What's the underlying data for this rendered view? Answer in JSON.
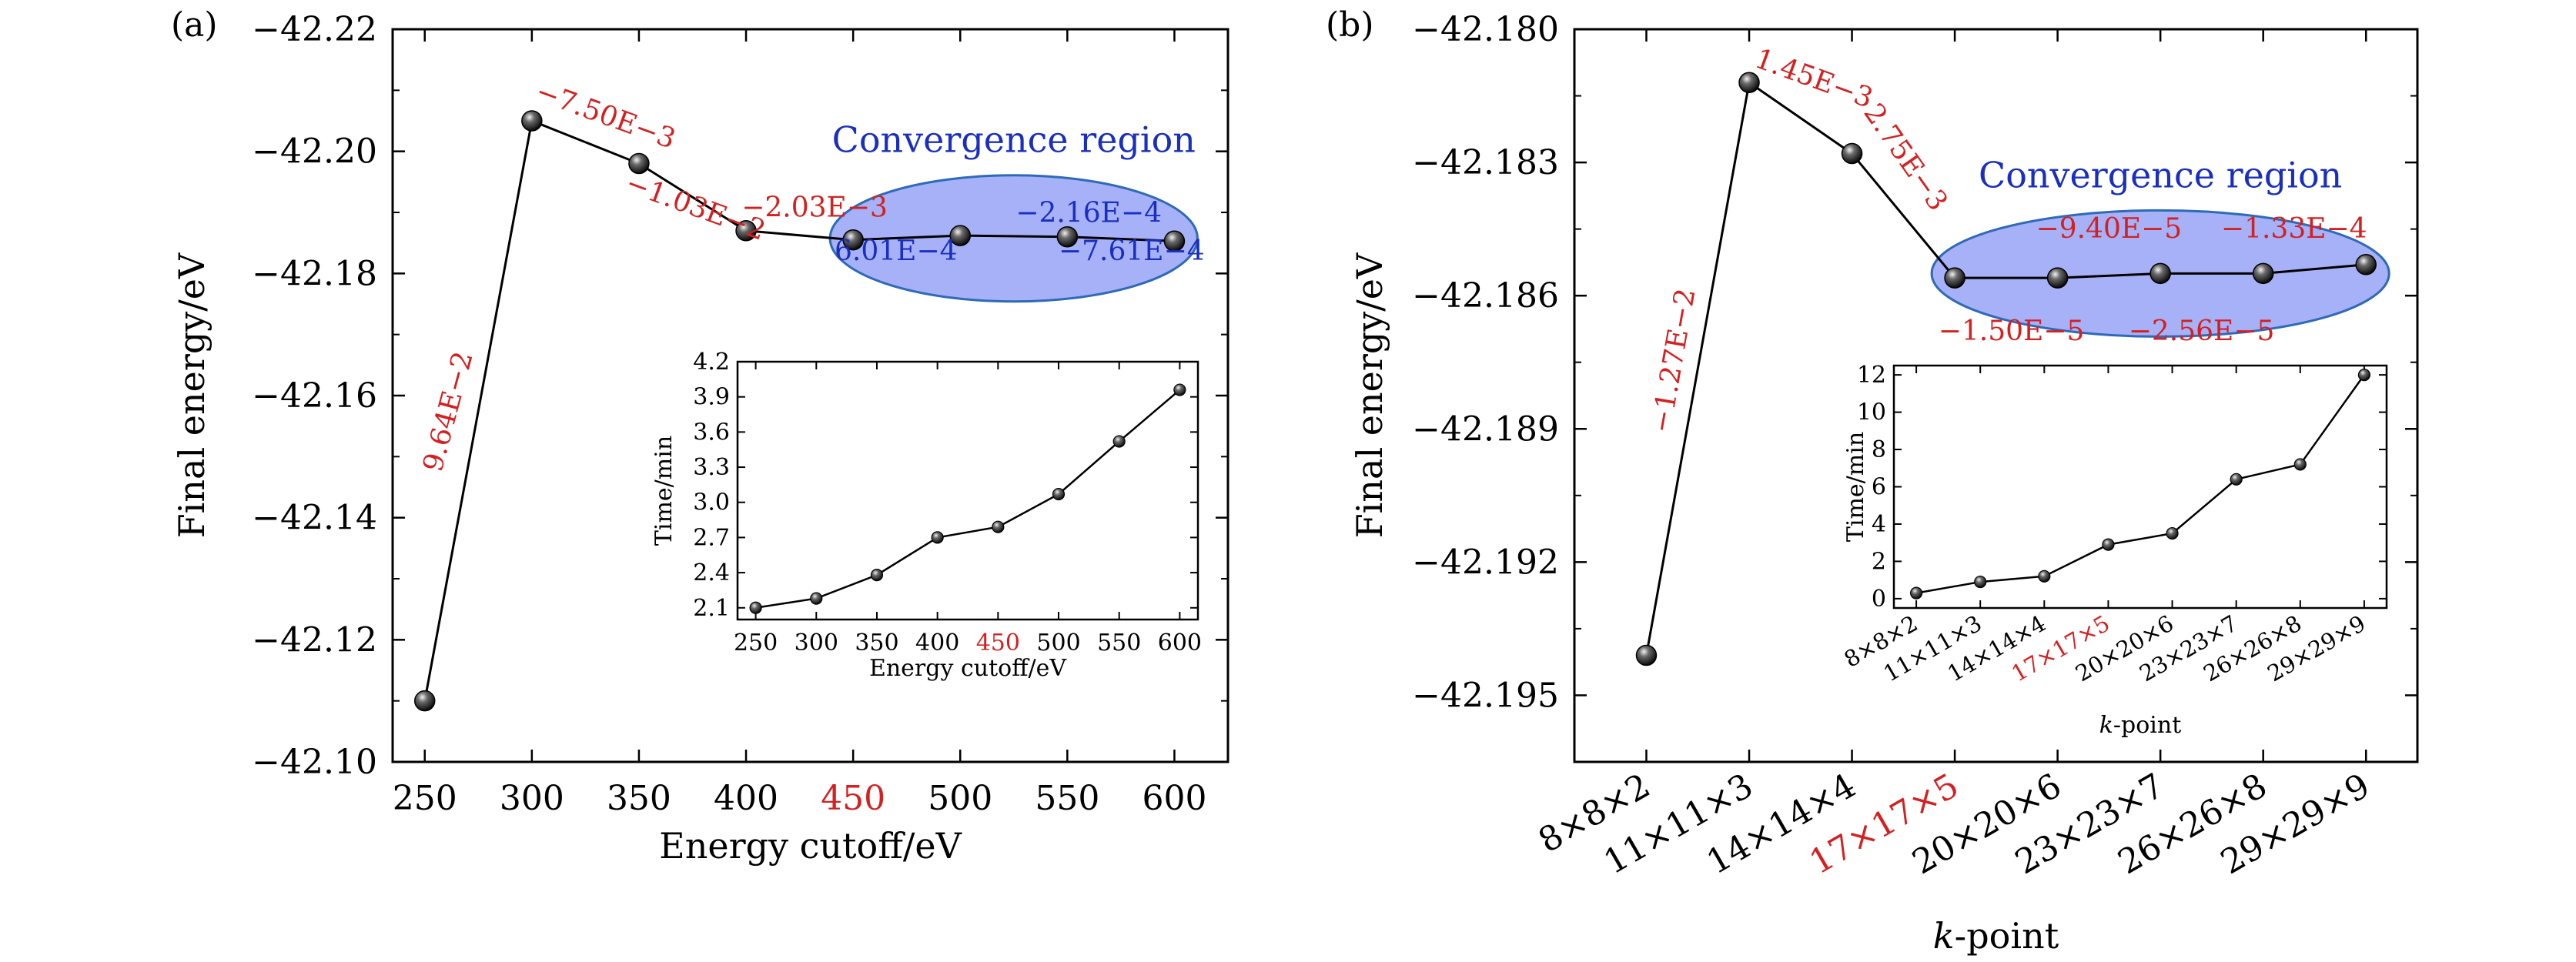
{
  "chart_data": [
    {
      "type": "line",
      "panel_label": "(a)",
      "xlabel": "Energy cutoff/eV",
      "ylabel": "Final energy/eV",
      "x": [
        250,
        300,
        350,
        400,
        450,
        500,
        550,
        600
      ],
      "y": [
        -42.11,
        -42.205,
        -42.198,
        -42.187,
        -42.1855,
        -42.1862,
        -42.186,
        -42.1853
      ],
      "xlim": [
        235,
        625
      ],
      "ylim": [
        -42.1,
        -42.22
      ],
      "xticks": [
        "250",
        "300",
        "350",
        "400",
        "450",
        "500",
        "550",
        "600"
      ],
      "yticks": [
        "−42.10",
        "−42.12",
        "−42.14",
        "−42.16",
        "−42.18",
        "−42.20",
        "−42.22"
      ],
      "highlight_tick": "450",
      "region_label": "Convergence region",
      "annotations": [
        {
          "text": "9.64E−2",
          "x": 265,
          "y": -42.157,
          "rotate": -75,
          "color": "#d42020"
        },
        {
          "text": "−7.50E−3",
          "x": 333,
          "y": -42.2045,
          "rotate": 20,
          "color": "#d42020"
        },
        {
          "text": "−1.03E−2",
          "x": 375,
          "y": -42.1895,
          "rotate": 20,
          "color": "#d42020"
        },
        {
          "text": "−2.03E−3",
          "x": 432,
          "y": -42.1893,
          "rotate": 0,
          "color": "#d42020"
        },
        {
          "text": "6.01E−4",
          "x": 470,
          "y": -42.1822,
          "rotate": 0,
          "color": "#1a2fbf"
        },
        {
          "text": "−2.16E−4",
          "x": 560,
          "y": -42.1884,
          "rotate": 0,
          "color": "#1a2fbf"
        },
        {
          "text": "−7.61E−4",
          "x": 580,
          "y": -42.1822,
          "rotate": 0,
          "color": "#1a2fbf"
        }
      ],
      "inset": {
        "xlabel": "Energy cutoff/eV",
        "ylabel": "Time/min",
        "x": [
          250,
          300,
          350,
          400,
          450,
          500,
          550,
          600
        ],
        "y": [
          2.1,
          2.18,
          2.38,
          2.7,
          2.79,
          3.07,
          3.52,
          3.96
        ],
        "xlim": [
          235,
          615
        ],
        "ylim": [
          2.0,
          4.2
        ],
        "xticks": [
          "250",
          "300",
          "350",
          "400",
          "450",
          "500",
          "550",
          "600"
        ],
        "yticks": [
          "2.1",
          "2.4",
          "2.7",
          "3.0",
          "3.3",
          "3.6",
          "3.9",
          "4.2"
        ],
        "highlight_tick": "450"
      }
    },
    {
      "type": "line",
      "panel_label": "(b)",
      "xlabel": "k-point",
      "ylabel": "Final energy/eV",
      "categories": [
        "8×8×2",
        "11×11×3",
        "14×14×4",
        "17×17×5",
        "20×20×6",
        "23×23×7",
        "26×26×8",
        "29×29×9"
      ],
      "y": [
        -42.1941,
        -42.1812,
        -42.1828,
        -42.1856,
        -42.1856,
        -42.1855,
        -42.1855,
        -42.1853
      ],
      "ylim": [
        -42.1965,
        -42.18
      ],
      "yticks": [
        "−42.195",
        "−42.192",
        "−42.189",
        "−42.186",
        "−42.183",
        "−42.180"
      ],
      "highlight_tick": "17×17×5",
      "region_label": "Convergence region",
      "annotations": [
        {
          "text": "−1.27E−2",
          "x": 0.35,
          "y": -42.1875,
          "rotate": -80,
          "color": "#d42020"
        },
        {
          "text": "1.45E−3",
          "x": 1.6,
          "y": -42.1813,
          "rotate": 20,
          "color": "#d42020"
        },
        {
          "text": "2.75E−3",
          "x": 2.45,
          "y": -42.183,
          "rotate": 55,
          "color": "#d42020"
        },
        {
          "text": "−1.50E−5",
          "x": 3.55,
          "y": -42.187,
          "rotate": 0,
          "color": "#d42020"
        },
        {
          "text": "−9.40E−5",
          "x": 4.5,
          "y": -42.1847,
          "rotate": 0,
          "color": "#d42020"
        },
        {
          "text": "−2.56E−5",
          "x": 5.4,
          "y": -42.187,
          "rotate": 0,
          "color": "#d42020"
        },
        {
          "text": "−1.33E−4",
          "x": 6.3,
          "y": -42.1847,
          "rotate": 0,
          "color": "#d42020"
        }
      ],
      "inset": {
        "xlabel": "k-point",
        "ylabel": "Time/min",
        "categories": [
          "8×8×2",
          "11×11×3",
          "14×14×4",
          "17×17×5",
          "20×20×6",
          "23×23×7",
          "26×26×8",
          "29×29×9"
        ],
        "y": [
          0.3,
          0.9,
          1.2,
          2.9,
          3.5,
          6.4,
          7.2,
          12.0
        ],
        "ylim": [
          -0.5,
          12.5
        ],
        "yticks": [
          "0",
          "2",
          "4",
          "6",
          "8",
          "10",
          "12"
        ],
        "highlight_tick": "17×17×5"
      }
    }
  ],
  "colors": {
    "axis": "#000000",
    "highlight": "#d42020",
    "region_fill": "#a6b1f7",
    "region_stroke": "#2e6ab8",
    "region_text": "#1a2fbf"
  }
}
